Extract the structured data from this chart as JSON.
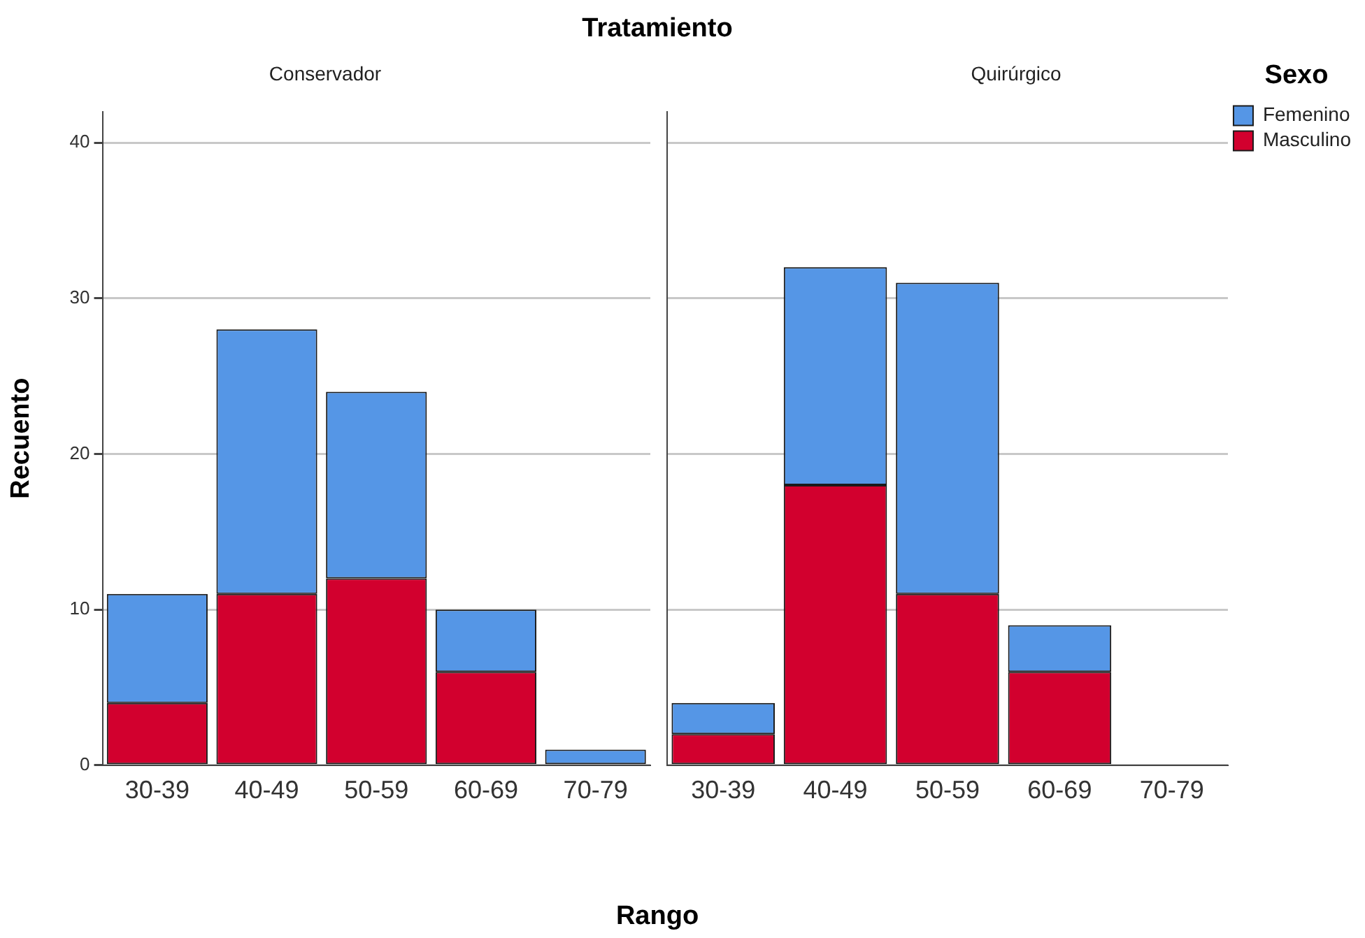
{
  "chart_data": [
    {
      "type": "bar",
      "title": "Conservador",
      "annotations": [
        "Tratamiento"
      ],
      "xlabel": "Rango",
      "ylabel": "Recuento",
      "categories": [
        "30-39",
        "40-49",
        "50-59",
        "60-69",
        "70-79"
      ],
      "stacked": true,
      "ylim": [
        0,
        42
      ],
      "yticks": [
        0,
        10,
        20,
        30,
        40
      ],
      "grid": "y",
      "legend": false,
      "series": [
        {
          "color": "#d2002e",
          "values": [
            4,
            11,
            12,
            6,
            0
          ]
        },
        {
          "color": "#5596e6",
          "values": [
            7,
            17,
            12,
            4,
            1
          ]
        }
      ]
    },
    {
      "type": "bar",
      "title": "Quirúrgico",
      "categories": [
        "30-39",
        "40-49",
        "50-59",
        "60-69",
        "70-79"
      ],
      "stacked": true,
      "ylim": [
        0,
        42
      ],
      "yticks": [
        0,
        10,
        20,
        30,
        40
      ],
      "grid": "y",
      "tick_labels": "x",
      "legend": "right",
      "legend_title": "Sexo",
      "series": [
        {
          "name": "Masculino",
          "color": "#d2002e",
          "values": [
            2,
            18,
            11,
            6,
            0
          ]
        },
        {
          "name": "Femenino",
          "color": "#5596e6",
          "values": [
            2,
            14,
            20,
            3,
            0
          ]
        }
      ]
    }
  ]
}
